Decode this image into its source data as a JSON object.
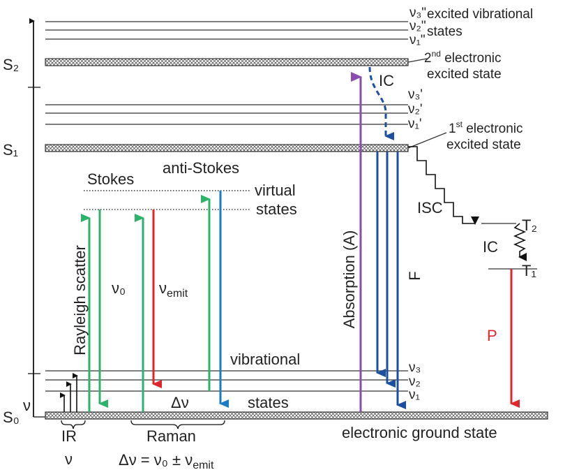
{
  "singlets": {
    "s0": "S₀",
    "s1": "S₁",
    "s2": "S₂"
  },
  "s2_vibrational": {
    "levels": [
      "ν₃\"",
      "ν₂\"",
      "ν₁\""
    ],
    "label": [
      "excited vibrational",
      "states"
    ]
  },
  "s2_label": {
    "ordinal": "2",
    "suffix": "nd",
    "text": " electronic",
    "line2": "excited state"
  },
  "s1_vibrational": {
    "levels": [
      "ν₃'",
      "ν₂'",
      "ν₁'"
    ]
  },
  "s1_label": {
    "ordinal": "1",
    "suffix": "st",
    "text": " electronic",
    "line2": "excited state"
  },
  "ground": {
    "levels": [
      "ν₃",
      "ν₂",
      "ν₁"
    ],
    "label": "electronic ground state",
    "vibrational": [
      "vibrational",
      "states"
    ]
  },
  "scattering": {
    "stokes": "Stokes",
    "anti_stokes": "anti-Stokes",
    "virtual": [
      "virtual",
      "states"
    ],
    "rayleigh": "Rayleigh scatter",
    "nu0": "ν₀",
    "nu_emit": {
      "symbol": "ν",
      "sub": "emit"
    },
    "delta_nu": "Δν"
  },
  "ir": {
    "nu": "ν",
    "label": "IR",
    "nu2": "ν"
  },
  "raman": {
    "label": "Raman",
    "formula": "Δν = ν₀ ± ν",
    "formula_sub": "emit"
  },
  "transitions": {
    "ic_upper": "IC",
    "absorption": "Absorption (A)",
    "fluorescence": "F",
    "isc": "ISC",
    "ic_triplet": "IC",
    "phosphorescence": "P"
  },
  "triplets": {
    "t2": "T₂",
    "t1": "T₁"
  }
}
